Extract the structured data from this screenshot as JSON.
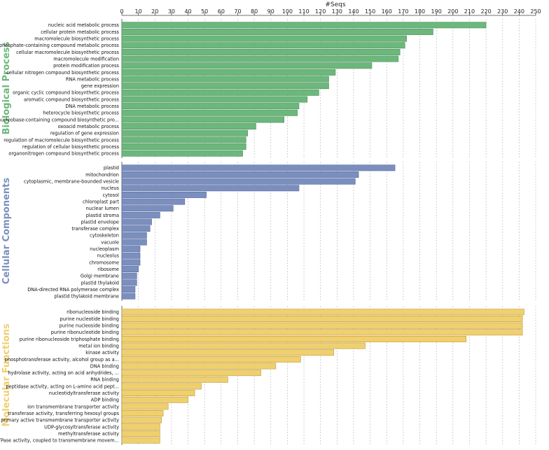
{
  "chart_data": {
    "type": "bar",
    "orientation": "horizontal",
    "title": "#Seqs",
    "xlim": [
      0,
      250
    ],
    "x_ticks": [
      0,
      10,
      20,
      30,
      40,
      50,
      60,
      70,
      80,
      90,
      100,
      110,
      120,
      130,
      140,
      150,
      160,
      170,
      180,
      190,
      200,
      210,
      220,
      230,
      240,
      250
    ],
    "grid": true,
    "panels": [
      {
        "name": "Biological Process",
        "color": "#6cb77c",
        "border": "#4a8f5a",
        "categories": [
          "nucleic acid metabolic process",
          "cellular protein metabolic process",
          "macromolecule biosynthetic process",
          "phosphate-containing compound metabolic process",
          "cellular macromolecule biosynthetic process",
          "macromolecule modification",
          "protein modification process",
          "cellular nitrogen compound biosynthetic process",
          "RNA metabolic process",
          "gene expression",
          "organic cyclic compound biosynthetic process",
          "aromatic compound biosynthetic process",
          "DNA metabolic process",
          "heterocycle biosynthetic process",
          "nucleobase-containing compound biosynthetic pro...",
          "oxoacid metabolic process",
          "regulation of gene expression",
          "regulation of macromolecule biosynthetic process",
          "regulation of cellular biosynthetic process",
          "organonitrogen compound biosynthetic process"
        ],
        "values": [
          220,
          188,
          172,
          171,
          168,
          167,
          151,
          129,
          125,
          125,
          119,
          112,
          107,
          106,
          98,
          81,
          76,
          75,
          75,
          73
        ]
      },
      {
        "name": "Cellular Components",
        "color": "#7b8fbf",
        "border": "#55679a",
        "categories": [
          "plastid",
          "mitochondrion",
          "cytoplasmic, membrane-bounded vesicle",
          "nucleus",
          "cytosol",
          "chloroplast part",
          "nuclear lumen",
          "plastid stroma",
          "plastid envelope",
          "transferase complex",
          "cytoskeleton",
          "vacuole",
          "nucleoplasm",
          "nucleolus",
          "chromosome",
          "ribosome",
          "Golgi membrane",
          "plastid thylakoid",
          "DNA-directed RNA polymerase complex",
          "plastid thylakoid membrane"
        ],
        "values": [
          165,
          143,
          141,
          107,
          51,
          38,
          31,
          23,
          18,
          17,
          15,
          15,
          11,
          11,
          11,
          10,
          9,
          9,
          8,
          8
        ]
      },
      {
        "name": "Molecular Functions",
        "color": "#f0cf6e",
        "border": "#b99a3c",
        "categories": [
          "ribonucleoside binding",
          "purine nucleotide binding",
          "purine nucleoside binding",
          "purine ribonucleotide binding",
          "purine ribonucleoside triphosphate binding",
          "metal ion binding",
          "kinase activity",
          "phosphotransferase activity, alcohol group as a...",
          "DNA binding",
          "hydrolase activity, acting on acid anhydrides, ...",
          "RNA binding",
          "peptidase activity, acting on L-amino acid pept...",
          "nucleotidyltransferase activity",
          "ADP binding",
          "ion transmembrane transporter activity",
          "transferase activity, transferring hexosyl groups",
          "primary active transmembrane transporter activity",
          "UDP-glycosyltransferase activity",
          "methyltransferase activity",
          "ATPase activity, coupled to transmembrane movem..."
        ],
        "values": [
          243,
          242,
          242,
          242,
          208,
          147,
          128,
          108,
          93,
          84,
          64,
          48,
          44,
          40,
          28,
          25,
          24,
          23,
          23,
          23
        ]
      }
    ]
  }
}
